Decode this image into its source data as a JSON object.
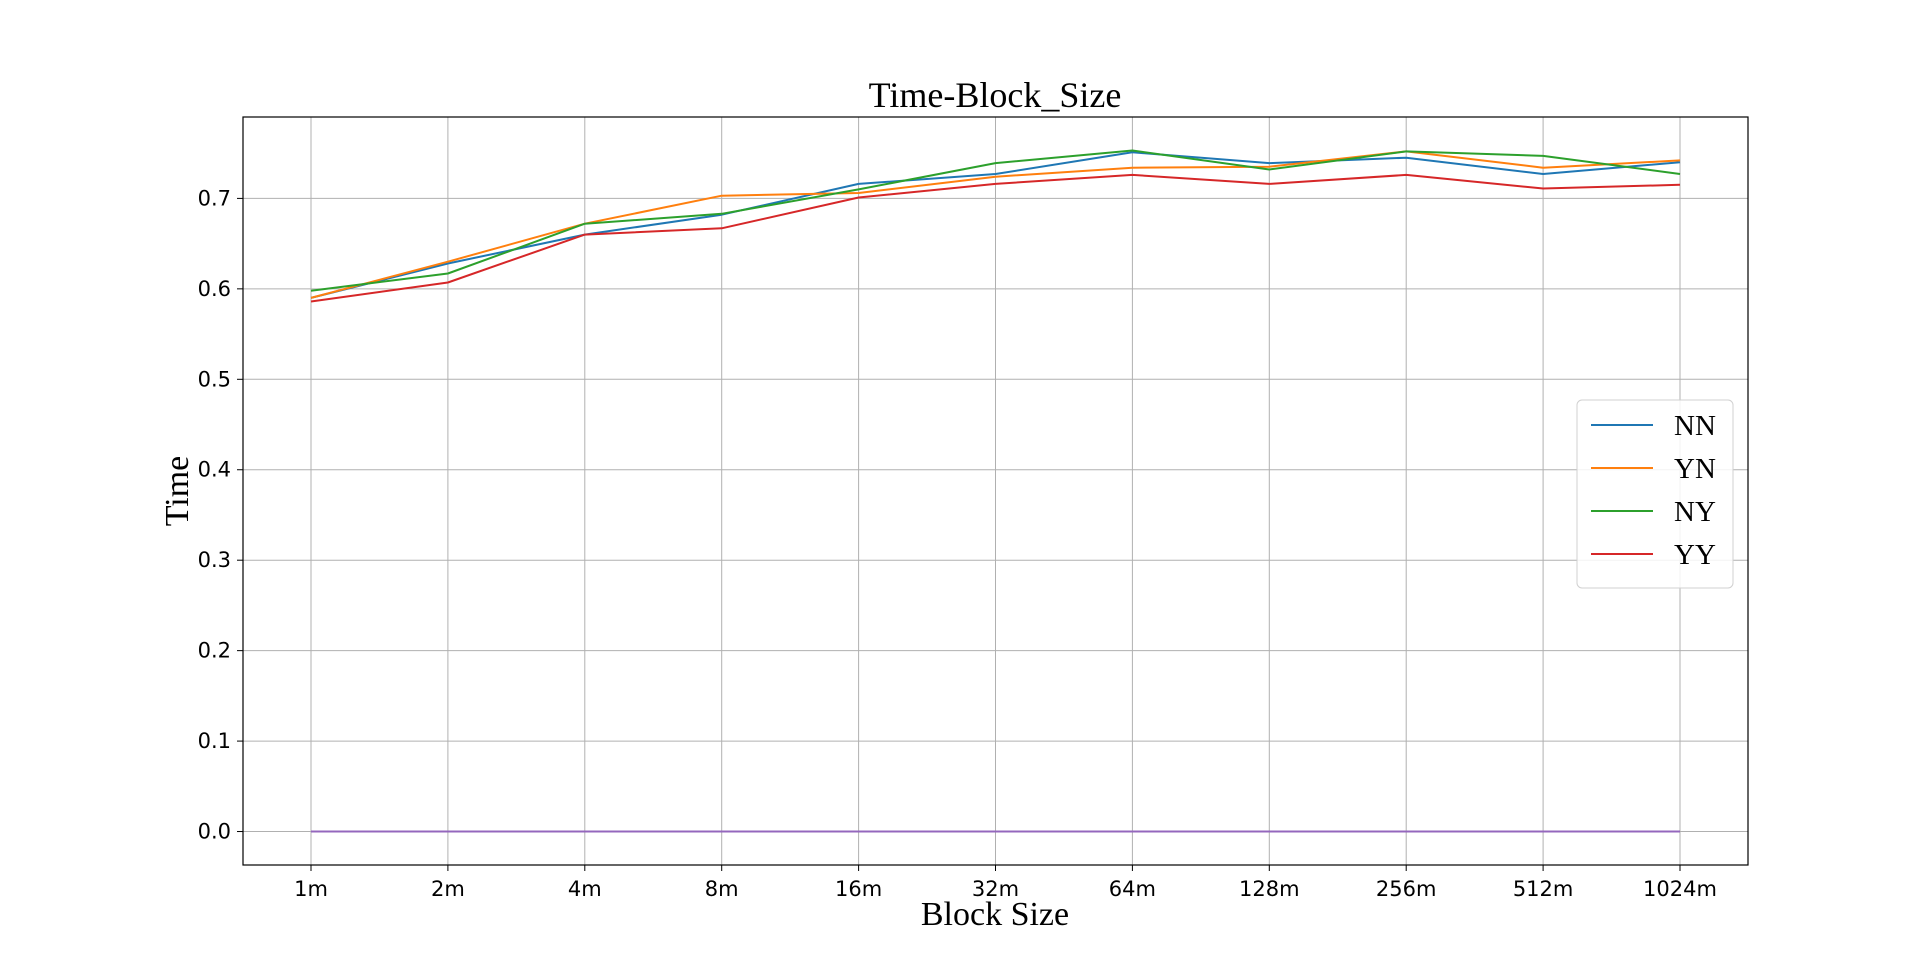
{
  "chart_data": {
    "type": "line",
    "title": "Time-Block_Size",
    "xlabel": "Block Size",
    "ylabel": "Time",
    "categories": [
      "1m",
      "2m",
      "4m",
      "8m",
      "16m",
      "32m",
      "64m",
      "128m",
      "256m",
      "512m",
      "1024m"
    ],
    "ylim": [
      -0.037,
      0.79
    ],
    "yticks": [
      0.0,
      0.1,
      0.2,
      0.3,
      0.4,
      0.5,
      0.6,
      0.7
    ],
    "ytick_labels": [
      "0.0",
      "0.1",
      "0.2",
      "0.3",
      "0.4",
      "0.5",
      "0.6",
      "0.7"
    ],
    "grid": true,
    "legend": "center-right",
    "series": [
      {
        "name": "NN",
        "color": "#1f77b4",
        "values": [
          0.59,
          0.628,
          0.66,
          0.682,
          0.716,
          0.727,
          0.751,
          0.739,
          0.745,
          0.727,
          0.74
        ]
      },
      {
        "name": "YN",
        "color": "#ff7f0e",
        "values": [
          0.59,
          0.63,
          0.672,
          0.703,
          0.706,
          0.724,
          0.734,
          0.735,
          0.752,
          0.734,
          0.742
        ]
      },
      {
        "name": "NY",
        "color": "#2ca02c",
        "values": [
          0.598,
          0.617,
          0.672,
          0.683,
          0.71,
          0.739,
          0.753,
          0.732,
          0.752,
          0.747,
          0.727
        ]
      },
      {
        "name": "YY",
        "color": "#d62728",
        "values": [
          0.586,
          0.607,
          0.66,
          0.667,
          0.701,
          0.716,
          0.726,
          0.716,
          0.726,
          0.711,
          0.715
        ]
      },
      {
        "color": "#9467bd",
        "values": [
          0,
          0,
          0,
          0,
          0,
          0,
          0,
          0,
          0,
          0,
          0
        ]
      }
    ]
  }
}
